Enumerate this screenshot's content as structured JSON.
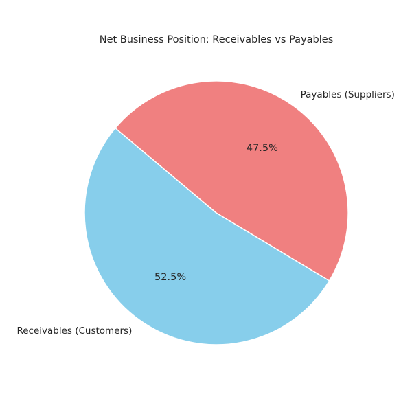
{
  "chart_data": {
    "type": "pie",
    "title": "Net Business Position: Receivables vs Payables",
    "slices": [
      {
        "label": "Receivables (Customers)",
        "value": 52.5,
        "percent_label": "52.5%",
        "color": "#87CEEB"
      },
      {
        "label": "Payables (Suppliers)",
        "value": 47.5,
        "percent_label": "47.5%",
        "color": "#F08080"
      }
    ],
    "start_angle_deg": 140,
    "direction": "counterclockwise",
    "edge_color": "#ffffff"
  }
}
